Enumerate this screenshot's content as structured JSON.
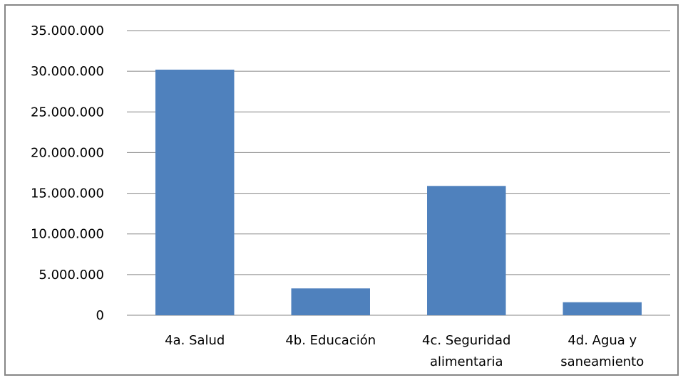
{
  "chart_data": {
    "type": "bar",
    "title": "",
    "xlabel": "",
    "ylabel": "",
    "categories": [
      [
        "4a. Salud"
      ],
      [
        "4b. Educación"
      ],
      [
        "4c. Seguridad",
        "alimentaria"
      ],
      [
        "4d. Agua y",
        "saneamiento"
      ]
    ],
    "values": [
      30200000,
      3300000,
      15900000,
      1600000
    ],
    "ylim": [
      0,
      35000000
    ],
    "yticks": [
      0,
      5000000,
      10000000,
      15000000,
      20000000,
      25000000,
      30000000,
      35000000
    ],
    "ytick_labels": [
      "0",
      "5.000.000",
      "10.000.000",
      "15.000.000",
      "20.000.000",
      "25.000.000",
      "30.000.000",
      "35.000.000"
    ],
    "grid": true,
    "legend": "none",
    "bar_color": "#4F81BD",
    "grid_color": "#868686",
    "border_color": "#868686"
  }
}
